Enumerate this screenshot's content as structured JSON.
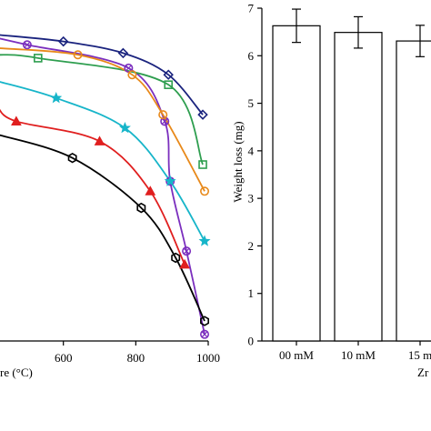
{
  "chart_data": [
    {
      "type": "line",
      "xlabel": "re (°C)",
      "x_ticks": [
        "600",
        "800",
        "1000"
      ],
      "xlim": [
        420,
        1000
      ],
      "ylim": [
        0,
        1
      ],
      "series": [
        {
          "color": "#1a237e",
          "marker": "diamond",
          "x": [
            420,
            600,
            765,
            890,
            985
          ],
          "y": [
            0.92,
            0.9,
            0.865,
            0.8,
            0.68
          ]
        },
        {
          "color": "#7b2fbe",
          "marker": "circle-x",
          "x": [
            420,
            500,
            780,
            880,
            895,
            940,
            990
          ],
          "y": [
            0.91,
            0.89,
            0.82,
            0.66,
            0.48,
            0.27,
            0.02
          ]
        },
        {
          "color": "#2e9e4f",
          "marker": "square",
          "x": [
            420,
            530,
            890,
            985
          ],
          "y": [
            0.86,
            0.85,
            0.77,
            0.53
          ]
        },
        {
          "color": "#e8891a",
          "marker": "circle",
          "x": [
            420,
            640,
            790,
            875,
            990
          ],
          "y": [
            0.88,
            0.86,
            0.8,
            0.68,
            0.45
          ]
        },
        {
          "color": "#17b5c9",
          "marker": "star",
          "x": [
            420,
            580,
            770,
            895,
            990
          ],
          "y": [
            0.78,
            0.73,
            0.64,
            0.48,
            0.3
          ]
        },
        {
          "color": "#e01f1f",
          "marker": "triangle",
          "x": [
            420,
            470,
            700,
            840,
            935
          ],
          "y": [
            0.7,
            0.66,
            0.6,
            0.45,
            0.23
          ]
        },
        {
          "color": "#000000",
          "marker": "hexagon",
          "x": [
            420,
            625,
            815,
            910,
            990
          ],
          "y": [
            0.62,
            0.55,
            0.4,
            0.25,
            0.06
          ]
        }
      ]
    },
    {
      "type": "bar",
      "categories": [
        "00 mM",
        "10 mM",
        "15 m"
      ],
      "values": [
        6.63,
        6.49,
        6.31
      ],
      "errors": [
        0.35,
        0.33,
        0.33
      ],
      "ylabel": "Weight loss (mg)",
      "xlabel": "Zr",
      "y_ticks": [
        "0",
        "1",
        "2",
        "3",
        "4",
        "5",
        "6",
        "7"
      ],
      "ylim": [
        0,
        7
      ],
      "bar_color": "#ffffff",
      "edge_color": "#000000"
    }
  ]
}
